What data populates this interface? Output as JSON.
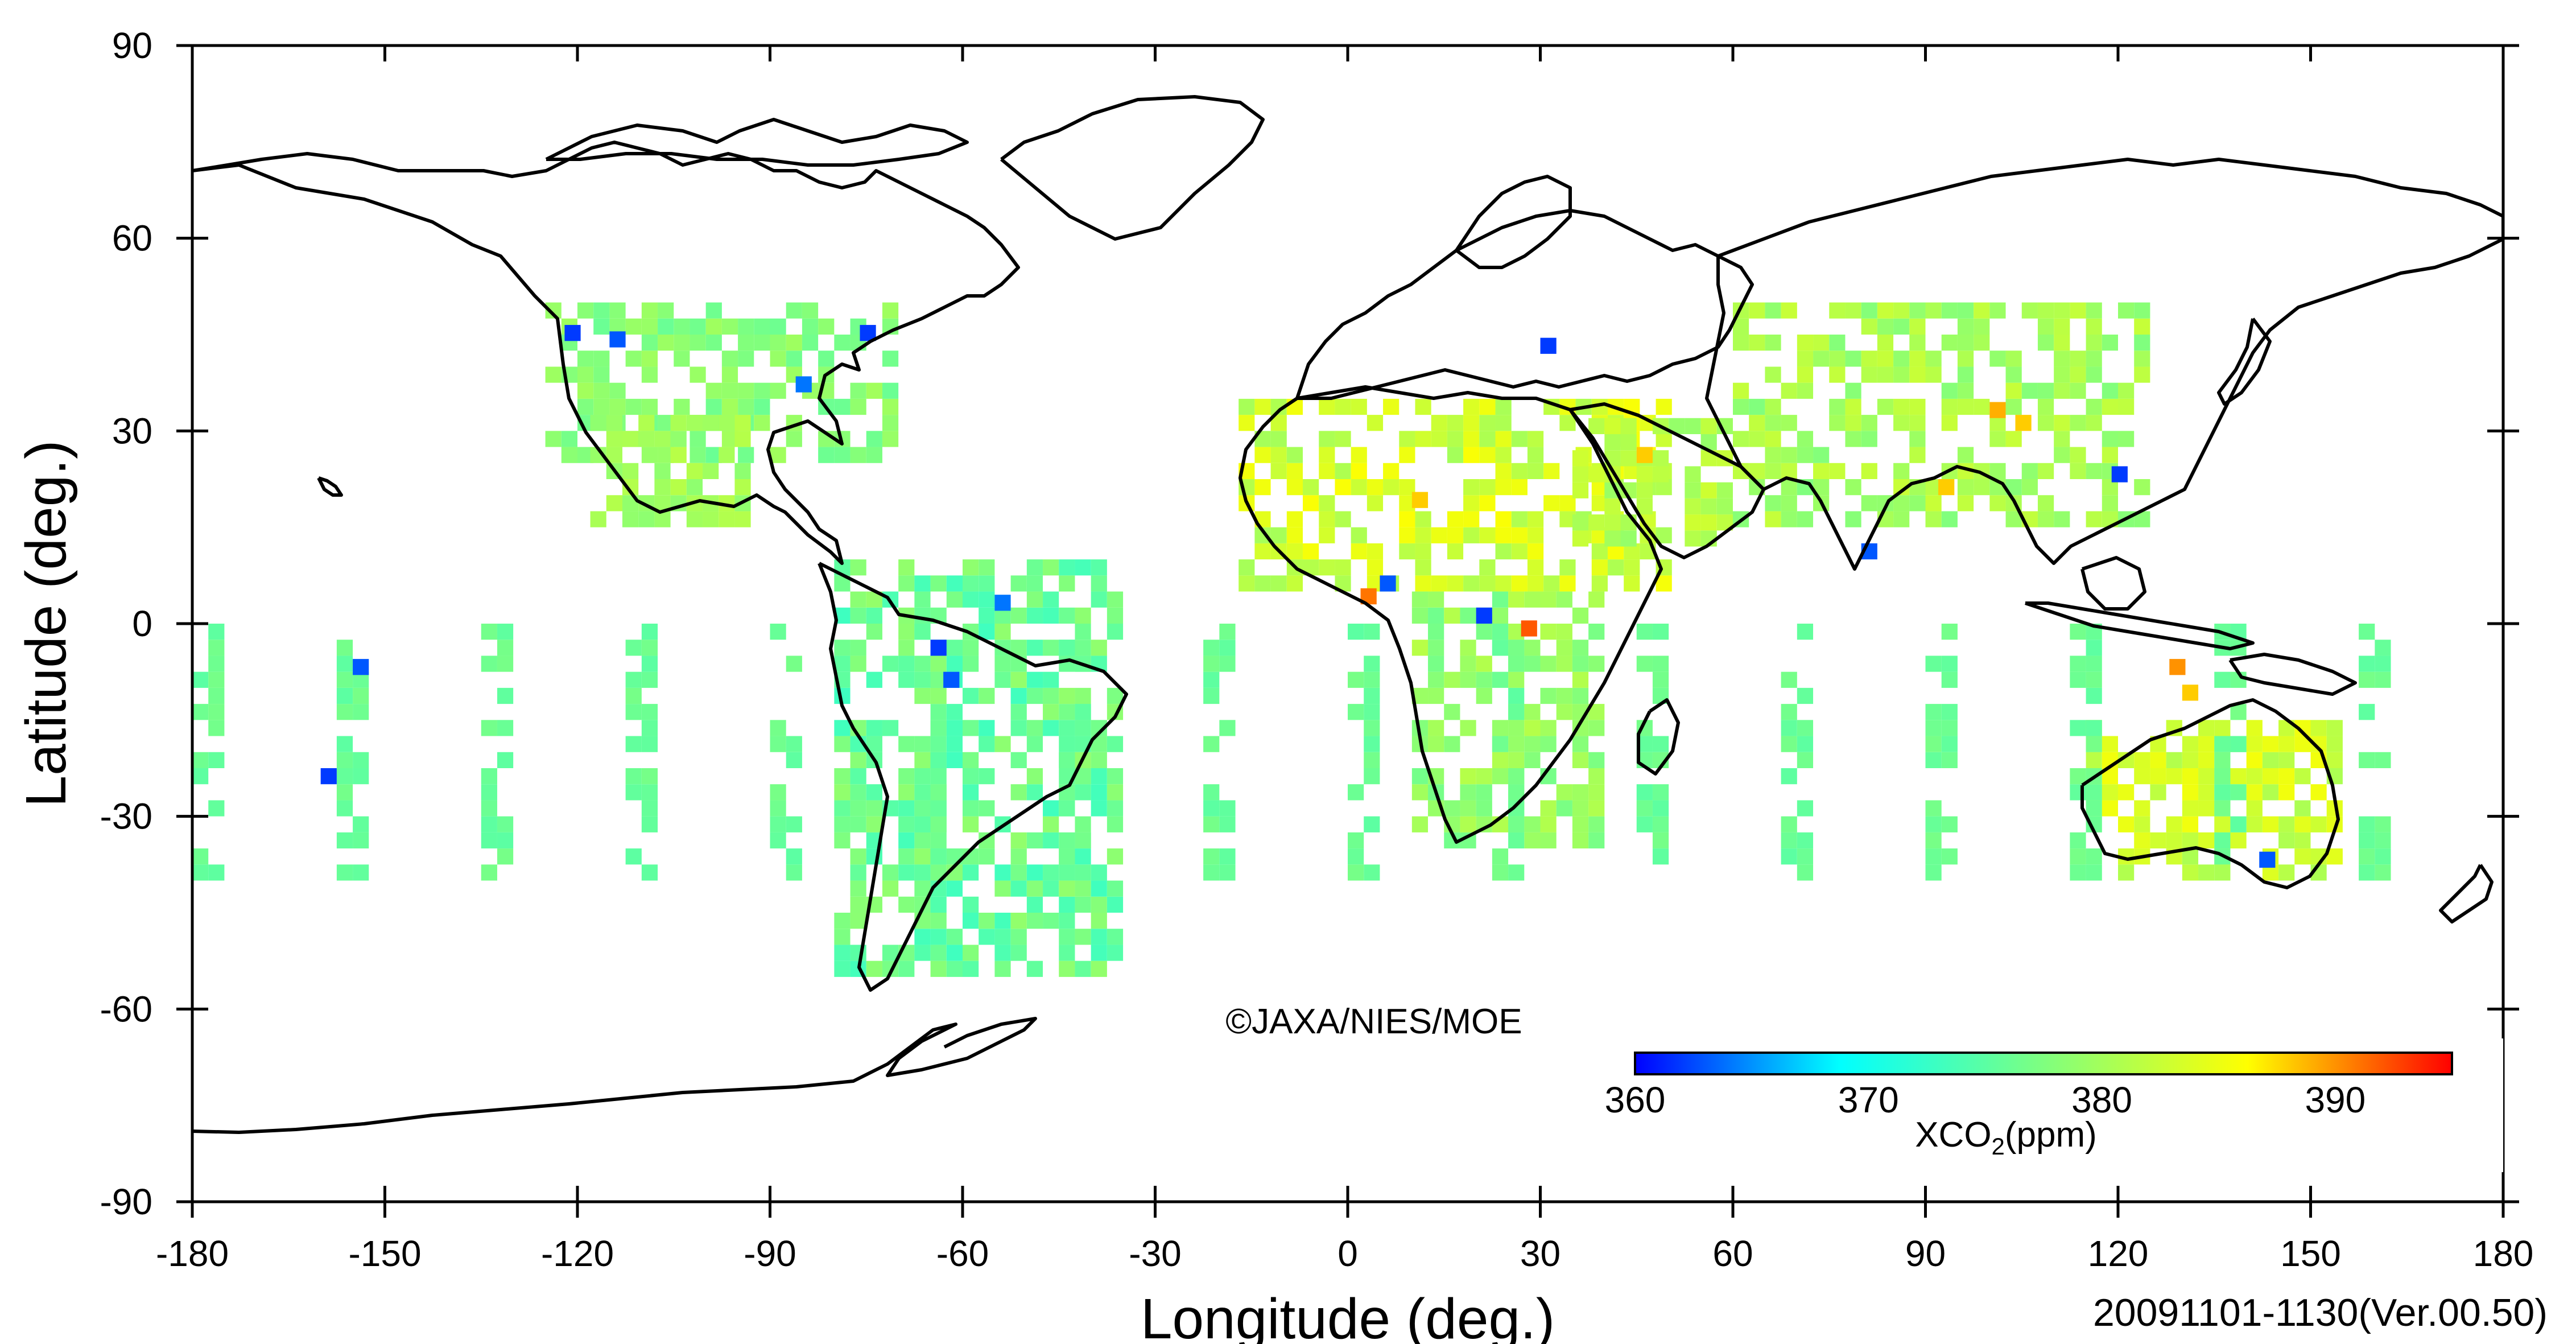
{
  "map": {
    "xlabel": "Longitude (deg.)",
    "ylabel": "Latitude (deg.)",
    "xlim": [
      -180,
      180
    ],
    "ylim": [
      -90,
      90
    ],
    "x_ticks": [
      -180,
      -150,
      -120,
      -90,
      -60,
      -30,
      0,
      30,
      60,
      90,
      120,
      150,
      180
    ],
    "y_ticks": [
      90,
      60,
      30,
      0,
      -30,
      -60,
      -90
    ],
    "x_tick_labels": [
      "-180",
      "-150",
      "-120",
      "-90",
      "-60",
      "-30",
      "0",
      "30",
      "60",
      "90",
      "120",
      "150",
      "180"
    ],
    "y_tick_labels": [
      "90",
      "60",
      "30",
      "0",
      "-30",
      "-60",
      "-90"
    ],
    "copyright": "©JAXA/NIES/MOE",
    "period_label": "20091101-1130(Ver.00.50)",
    "coastline_color": "#000000"
  },
  "colorbar": {
    "min": 360,
    "max": 395,
    "tick_values": [
      360,
      370,
      380,
      390
    ],
    "tick_labels": [
      "360",
      "370",
      "380",
      "390"
    ],
    "title_prefix": "XCO",
    "title_subscript": "2",
    "title_suffix": "(ppm)",
    "colors": [
      "#0000ff",
      "#00ffff",
      "#7fff7f",
      "#ffff00",
      "#ff0000"
    ]
  },
  "chart_data": {
    "type": "heatmap",
    "variable": "XCO2",
    "units": "ppm",
    "grid_resolution_deg": 2.5,
    "value_range": [
      360,
      395
    ],
    "regions": [
      {
        "lon": [
          -125,
          -70
        ],
        "lat": [
          25,
          50
        ],
        "value": 378,
        "spread": 2
      },
      {
        "lon": [
          -118,
          -95
        ],
        "lat": [
          15,
          32
        ],
        "value": 380,
        "spread": 1.5
      },
      {
        "lon": [
          -80,
          -35
        ],
        "lat": [
          -55,
          10
        ],
        "value": 376,
        "spread": 3
      },
      {
        "lon": [
          -17,
          50
        ],
        "lat": [
          5,
          35
        ],
        "value": 383,
        "spread": 3
      },
      {
        "lon": [
          10,
          40
        ],
        "lat": [
          -35,
          5
        ],
        "value": 379,
        "spread": 2.5
      },
      {
        "lon": [
          35,
          60
        ],
        "lat": [
          12,
          32
        ],
        "value": 381,
        "spread": 2
      },
      {
        "lon": [
          60,
          125
        ],
        "lat": [
          15,
          48
        ],
        "value": 380,
        "spread": 2.5
      },
      {
        "lon": [
          115,
          155
        ],
        "lat": [
          -40,
          -15
        ],
        "value": 383,
        "spread": 2.5
      },
      {
        "lon": [
          -180,
          180
        ],
        "lat": [
          -40,
          0
        ],
        "value": 376,
        "spread": 1
      }
    ],
    "outliers": [
      {
        "lon": -122,
        "lat": 44,
        "value": 362
      },
      {
        "lon": -115,
        "lat": 43,
        "value": 363
      },
      {
        "lon": -76,
        "lat": 44,
        "value": 362
      },
      {
        "lon": -86,
        "lat": 36,
        "value": 364
      },
      {
        "lon": -155,
        "lat": -8,
        "value": 363
      },
      {
        "lon": -160,
        "lat": -25,
        "value": 362
      },
      {
        "lon": -65,
        "lat": -5,
        "value": 362
      },
      {
        "lon": -55,
        "lat": 2,
        "value": 364
      },
      {
        "lon": -63,
        "lat": -10,
        "value": 363
      },
      {
        "lon": 5,
        "lat": 5,
        "value": 363
      },
      {
        "lon": 20,
        "lat": 0,
        "value": 362
      },
      {
        "lon": 27,
        "lat": -2,
        "value": 392
      },
      {
        "lon": 2,
        "lat": 3,
        "value": 391
      },
      {
        "lon": 30,
        "lat": 42,
        "value": 362
      },
      {
        "lon": 80,
        "lat": 10,
        "value": 363
      },
      {
        "lon": 119,
        "lat": 22,
        "value": 362
      },
      {
        "lon": 142,
        "lat": -38,
        "value": 363
      },
      {
        "lon": 128,
        "lat": -8,
        "value": 390
      },
      {
        "lon": 130,
        "lat": -12,
        "value": 388
      },
      {
        "lon": 100,
        "lat": 32,
        "value": 389
      },
      {
        "lon": 104,
        "lat": 30,
        "value": 388
      },
      {
        "lon": 45,
        "lat": 25,
        "value": 388
      },
      {
        "lon": 10,
        "lat": 18,
        "value": 388
      },
      {
        "lon": 92,
        "lat": 20,
        "value": 388
      }
    ]
  }
}
